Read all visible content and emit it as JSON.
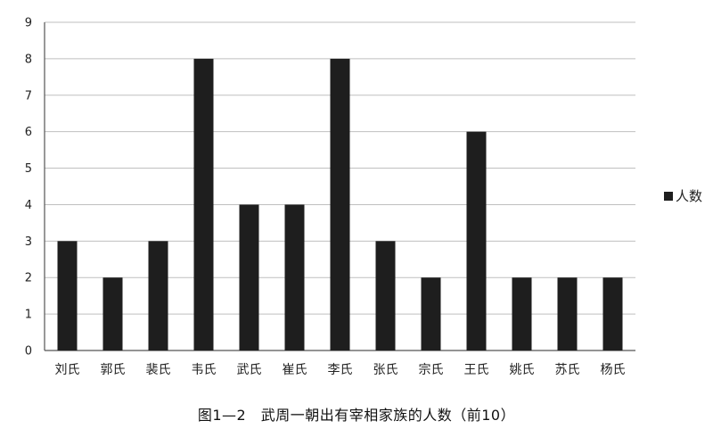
{
  "caption": "图1—2　武周一朝出有宰相家族的人数（前10）",
  "chart_data": {
    "type": "bar",
    "categories": [
      "刘氏",
      "郭氏",
      "裴氏",
      "韦氏",
      "武氏",
      "崔氏",
      "李氏",
      "张氏",
      "宗氏",
      "王氏",
      "姚氏",
      "苏氏",
      "杨氏"
    ],
    "series": [
      {
        "name": "人数",
        "values": [
          3,
          2,
          3,
          8,
          4,
          4,
          8,
          3,
          2,
          6,
          2,
          2,
          2
        ]
      }
    ],
    "yticks": [
      0,
      1,
      2,
      3,
      4,
      5,
      6,
      7,
      8,
      9
    ],
    "ylim": [
      0,
      9
    ],
    "grid": true,
    "legend_position": "right",
    "bar_color": "#1e1e1e",
    "grid_color": "#bfbfbf"
  }
}
